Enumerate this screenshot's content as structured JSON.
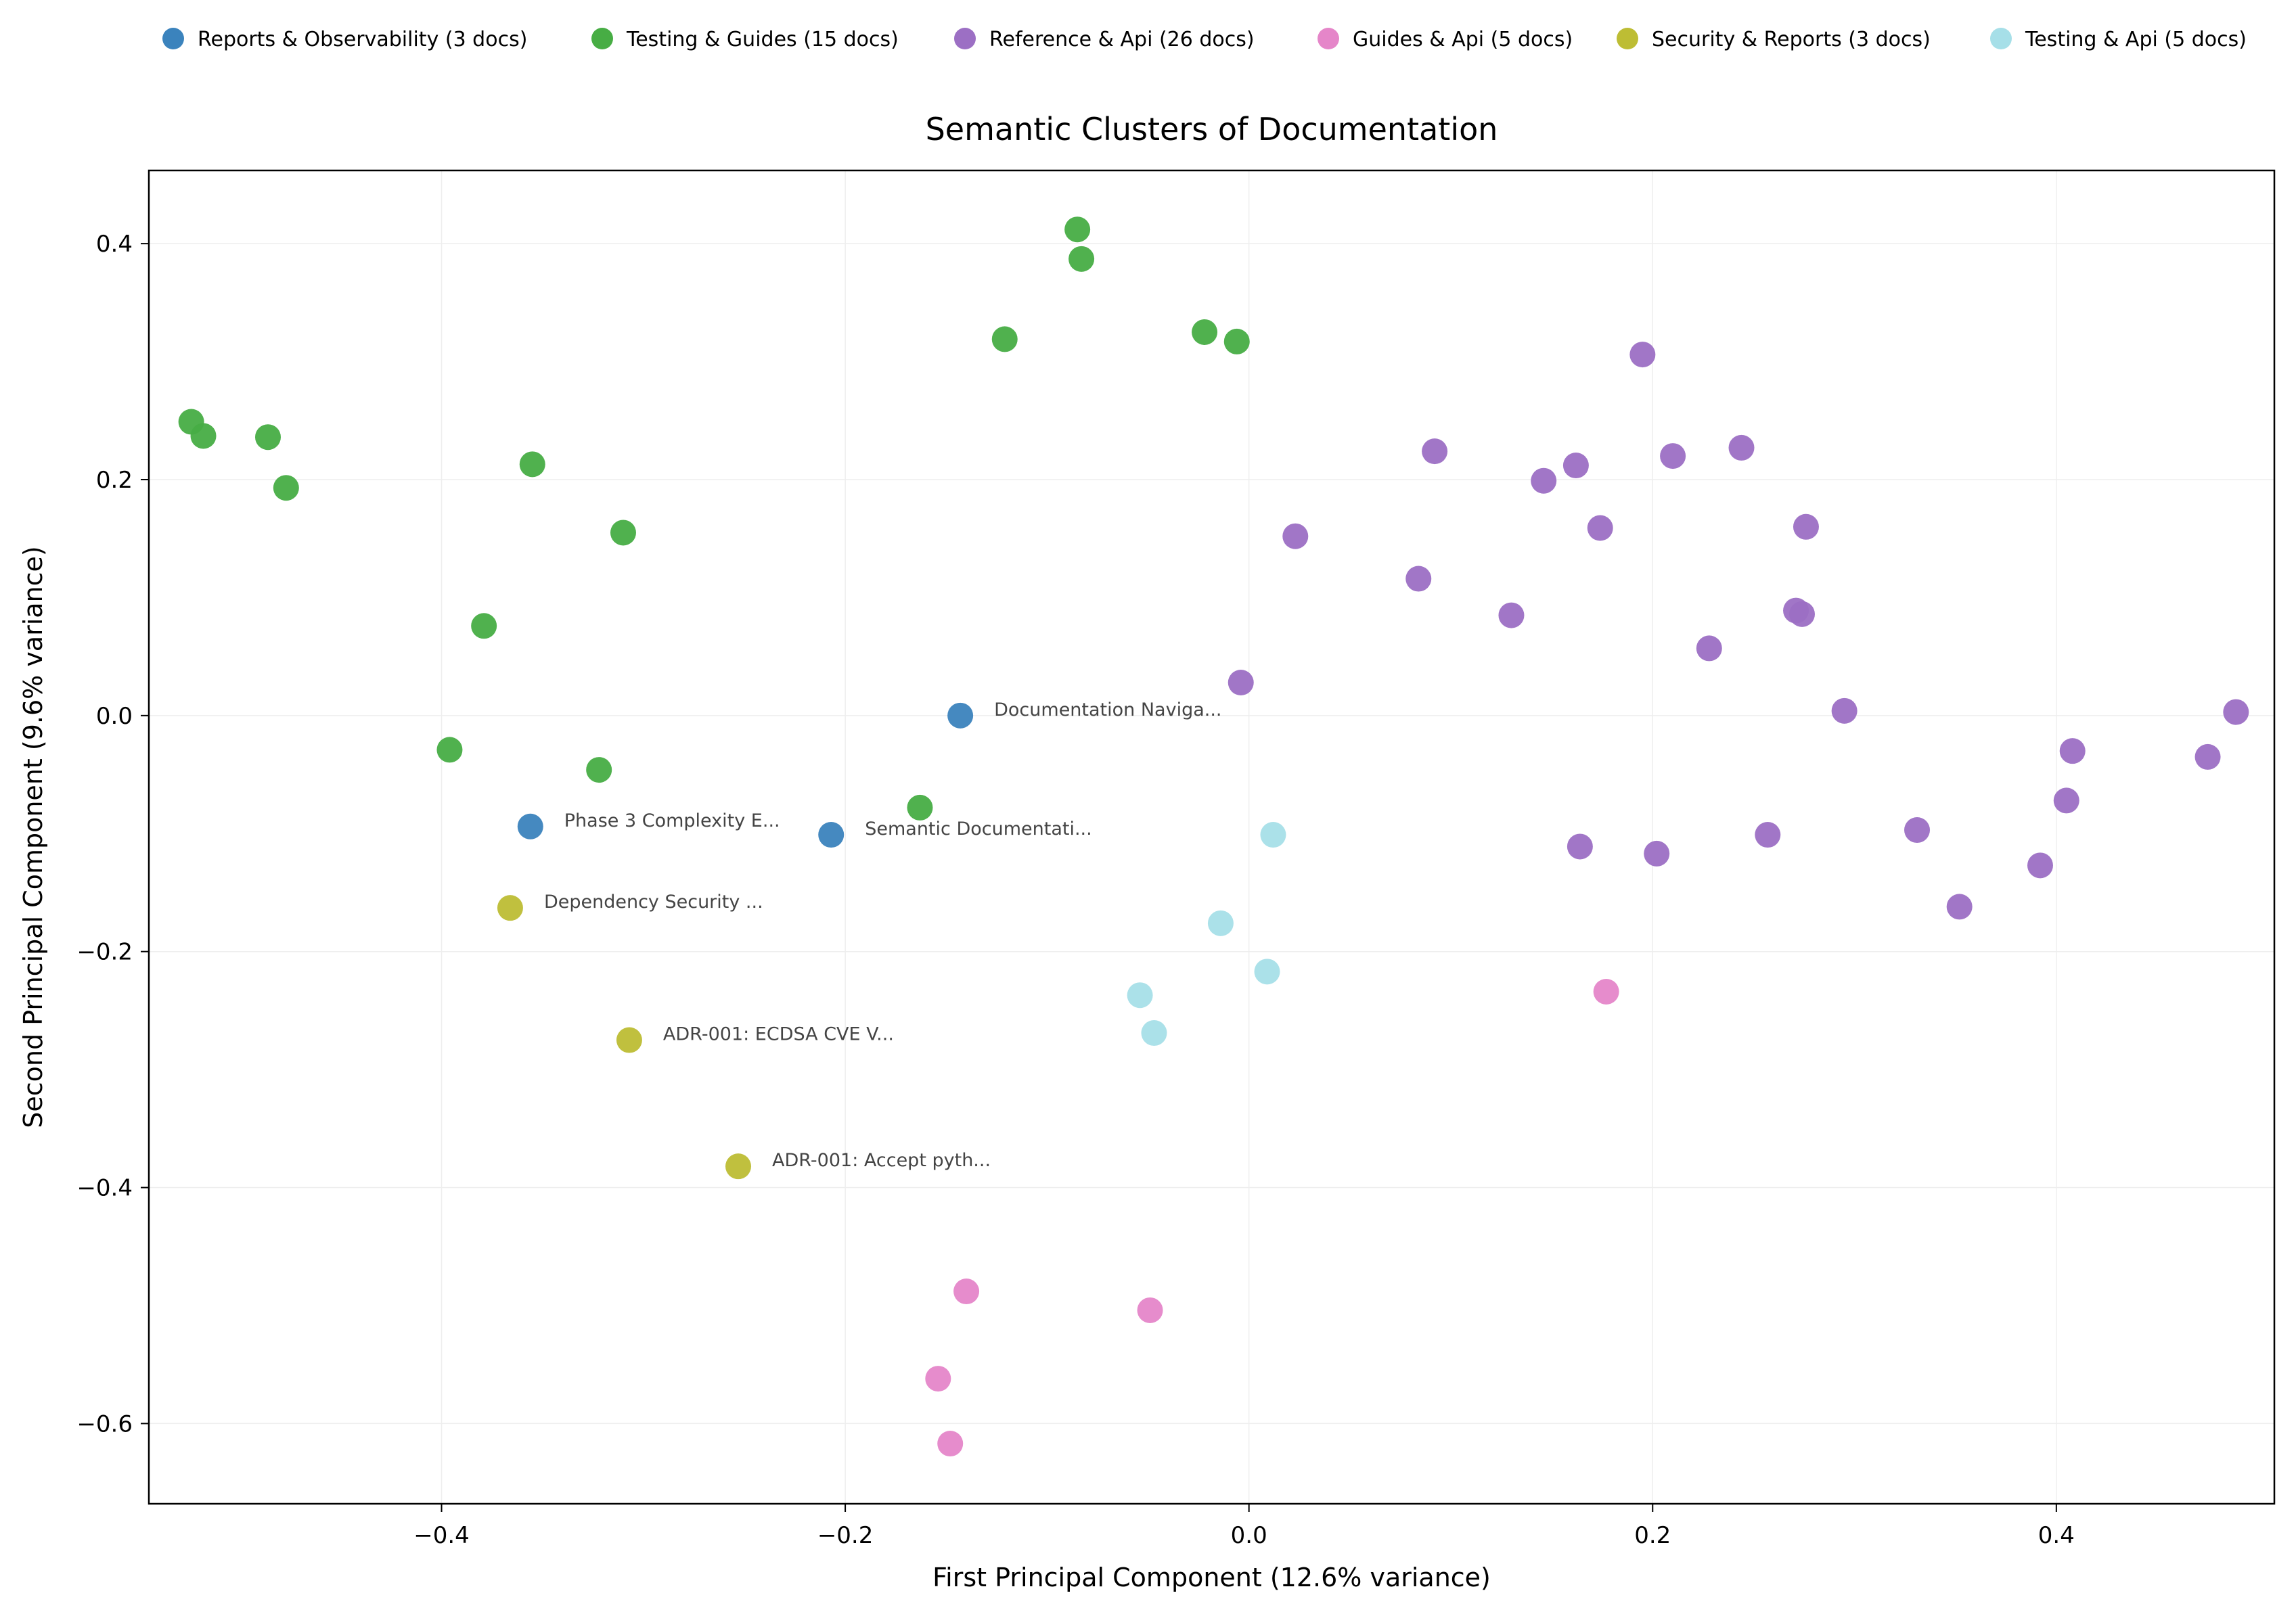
{
  "chart_data": {
    "type": "scatter",
    "title": "Semantic Clusters of Documentation",
    "xlabel": "First Principal Component (12.6% variance)",
    "ylabel": "Second Principal Component (9.6% variance)",
    "xlim": [
      -0.545,
      0.508
    ],
    "ylim": [
      -0.668,
      0.462
    ],
    "xticks": [
      -0.4,
      -0.2,
      0.0,
      0.2,
      0.4
    ],
    "xtick_labels": [
      "−0.4",
      "−0.2",
      "0.0",
      "0.2",
      "0.4"
    ],
    "yticks": [
      0.4,
      0.2,
      0.0,
      -0.2,
      -0.4,
      -0.6
    ],
    "ytick_labels": [
      "0.4",
      "0.2",
      "0.0",
      "−0.2",
      "−0.4",
      "−0.6"
    ],
    "grid": true,
    "legend_position": "top",
    "series": [
      {
        "name": "Reports & Observability (3 docs)",
        "color": "#3b83bd",
        "points": [
          {
            "x": -0.143,
            "y": 0.0,
            "label": "Documentation Naviga..."
          },
          {
            "x": -0.356,
            "y": -0.094,
            "label": "Phase 3 Complexity E..."
          },
          {
            "x": -0.207,
            "y": -0.101,
            "label": "Semantic Documentati..."
          }
        ]
      },
      {
        "name": "Testing & Guides (15 docs)",
        "color": "#47ad44",
        "points": [
          {
            "x": -0.524,
            "y": 0.249
          },
          {
            "x": -0.518,
            "y": 0.237
          },
          {
            "x": -0.486,
            "y": 0.236
          },
          {
            "x": -0.477,
            "y": 0.193
          },
          {
            "x": -0.355,
            "y": 0.213
          },
          {
            "x": -0.31,
            "y": 0.155
          },
          {
            "x": -0.379,
            "y": 0.076
          },
          {
            "x": -0.396,
            "y": -0.029
          },
          {
            "x": -0.322,
            "y": -0.046
          },
          {
            "x": -0.163,
            "y": -0.078
          },
          {
            "x": -0.121,
            "y": 0.319
          },
          {
            "x": -0.085,
            "y": 0.412
          },
          {
            "x": -0.083,
            "y": 0.387
          },
          {
            "x": -0.022,
            "y": 0.325
          },
          {
            "x": -0.006,
            "y": 0.317
          }
        ]
      },
      {
        "name": "Reference & Api (26 docs)",
        "color": "#9c6fc4",
        "points": [
          {
            "x": 0.195,
            "y": 0.306
          },
          {
            "x": 0.092,
            "y": 0.224
          },
          {
            "x": 0.146,
            "y": 0.199
          },
          {
            "x": 0.162,
            "y": 0.212
          },
          {
            "x": 0.21,
            "y": 0.22
          },
          {
            "x": 0.244,
            "y": 0.227
          },
          {
            "x": 0.023,
            "y": 0.152
          },
          {
            "x": 0.174,
            "y": 0.159
          },
          {
            "x": 0.276,
            "y": 0.16
          },
          {
            "x": 0.084,
            "y": 0.116
          },
          {
            "x": 0.13,
            "y": 0.085
          },
          {
            "x": 0.271,
            "y": 0.089
          },
          {
            "x": 0.274,
            "y": 0.086
          },
          {
            "x": 0.228,
            "y": 0.057
          },
          {
            "x": -0.004,
            "y": 0.028
          },
          {
            "x": 0.295,
            "y": 0.004
          },
          {
            "x": 0.489,
            "y": 0.003
          },
          {
            "x": 0.408,
            "y": -0.03
          },
          {
            "x": 0.475,
            "y": -0.035
          },
          {
            "x": 0.405,
            "y": -0.072
          },
          {
            "x": 0.164,
            "y": -0.111
          },
          {
            "x": 0.202,
            "y": -0.117
          },
          {
            "x": 0.257,
            "y": -0.101
          },
          {
            "x": 0.331,
            "y": -0.097
          },
          {
            "x": 0.352,
            "y": -0.162
          },
          {
            "x": 0.392,
            "y": -0.127
          }
        ]
      },
      {
        "name": "Guides & Api (5 docs)",
        "color": "#e586c9",
        "points": [
          {
            "x": 0.177,
            "y": -0.234
          },
          {
            "x": -0.14,
            "y": -0.488
          },
          {
            "x": -0.049,
            "y": -0.504
          },
          {
            "x": -0.154,
            "y": -0.562
          },
          {
            "x": -0.148,
            "y": -0.617
          }
        ]
      },
      {
        "name": "Security & Reports (3 docs)",
        "color": "#bdbd34",
        "points": [
          {
            "x": -0.366,
            "y": -0.163,
            "label": "Dependency Security ..."
          },
          {
            "x": -0.307,
            "y": -0.275,
            "label": "ADR-001: ECDSA CVE V..."
          },
          {
            "x": -0.253,
            "y": -0.382,
            "label": "ADR-001: Accept pyth..."
          }
        ]
      },
      {
        "name": "Testing & Api (5 docs)",
        "color": "#a6dfe8",
        "points": [
          {
            "x": 0.012,
            "y": -0.101
          },
          {
            "x": -0.014,
            "y": -0.176
          },
          {
            "x": 0.009,
            "y": -0.217
          },
          {
            "x": -0.054,
            "y": -0.237
          },
          {
            "x": -0.047,
            "y": -0.269
          }
        ]
      }
    ]
  }
}
